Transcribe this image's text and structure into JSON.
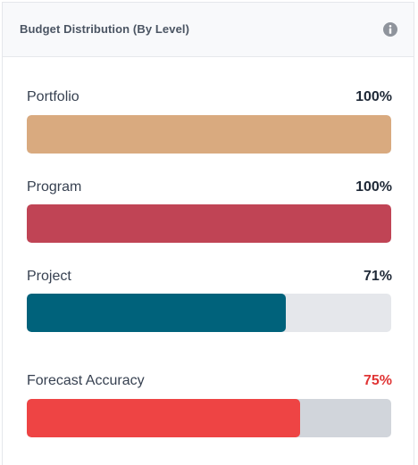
{
  "card": {
    "title": "Budget Distribution (By Level)",
    "info_icon": "info-icon"
  },
  "rows": [
    {
      "label": "Portfolio",
      "value_text": "100%",
      "percent": 100,
      "color": "#d9aa7f",
      "track_color": "#e5e7eb",
      "value_color": "#1f2937"
    },
    {
      "label": "Program",
      "value_text": "100%",
      "percent": 100,
      "color": "#c04455",
      "track_color": "#e5e7eb",
      "value_color": "#1f2937"
    },
    {
      "label": "Project",
      "value_text": "71%",
      "percent": 71,
      "color": "#00627b",
      "track_color": "#e5e7eb",
      "value_color": "#1f2937"
    },
    {
      "label": "Forecast Accuracy",
      "value_text": "75%",
      "percent": 75,
      "color": "#ee4444",
      "track_color": "#d1d5db",
      "value_color": "#e03535"
    }
  ]
}
